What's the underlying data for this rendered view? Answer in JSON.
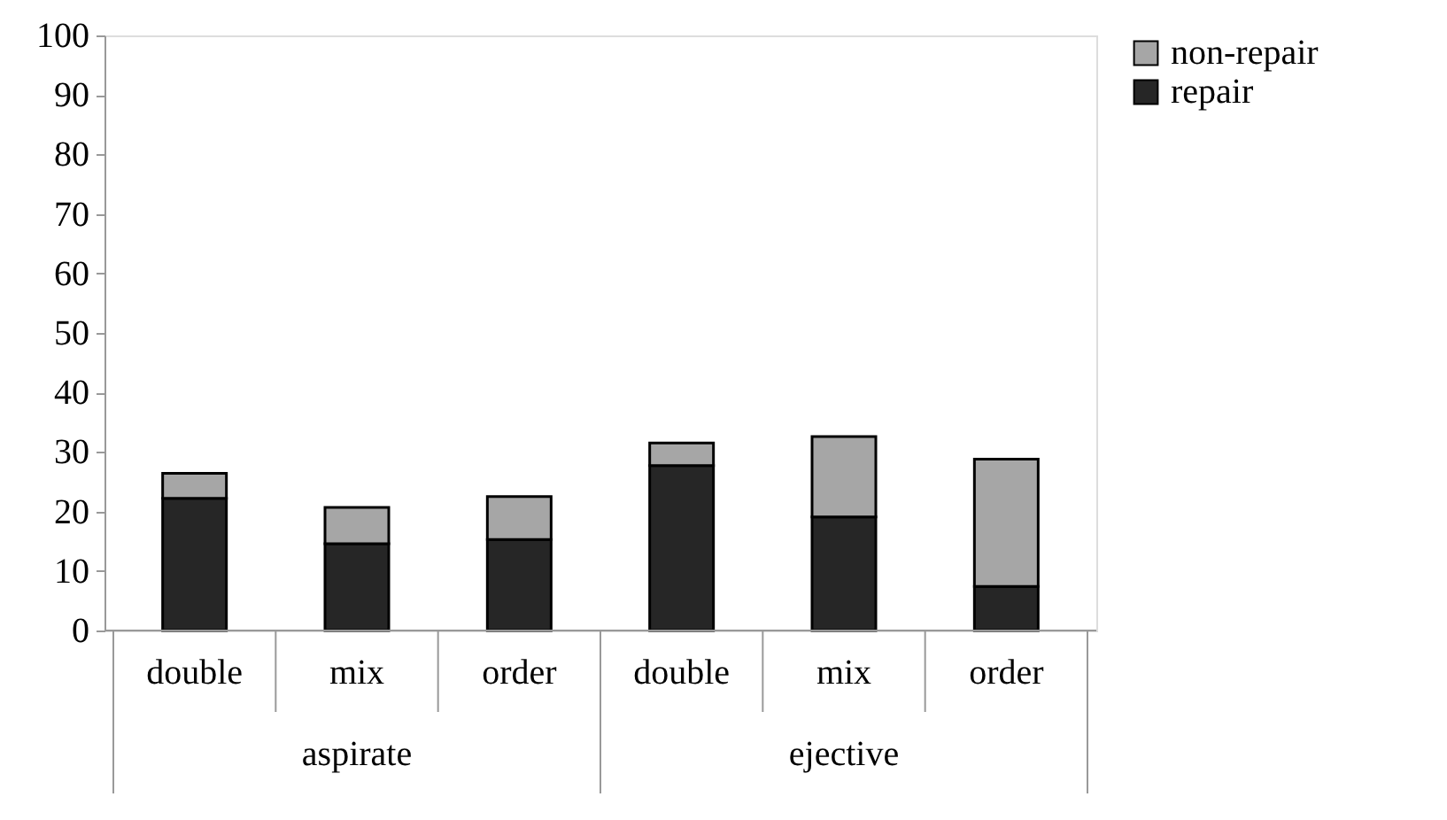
{
  "chart_data": {
    "type": "bar",
    "stacked": true,
    "categories": [
      "double",
      "mix",
      "order",
      "double",
      "mix",
      "order"
    ],
    "annotations": [
      "aspirate",
      "ejective"
    ],
    "series": [
      {
        "name": "repair",
        "color": "#262626",
        "values": [
          22.2,
          14.6,
          15.3,
          27.7,
          19.1,
          7.4
        ]
      },
      {
        "name": "non-repair",
        "color": "#a6a6a6",
        "values": [
          4.2,
          6.1,
          7.2,
          3.8,
          13.5,
          21.4
        ]
      }
    ],
    "ylim": [
      0,
      100
    ],
    "yticks": [
      0,
      10,
      20,
      30,
      40,
      50,
      60,
      70,
      80,
      90,
      100
    ],
    "grid": false,
    "legend": "right"
  }
}
